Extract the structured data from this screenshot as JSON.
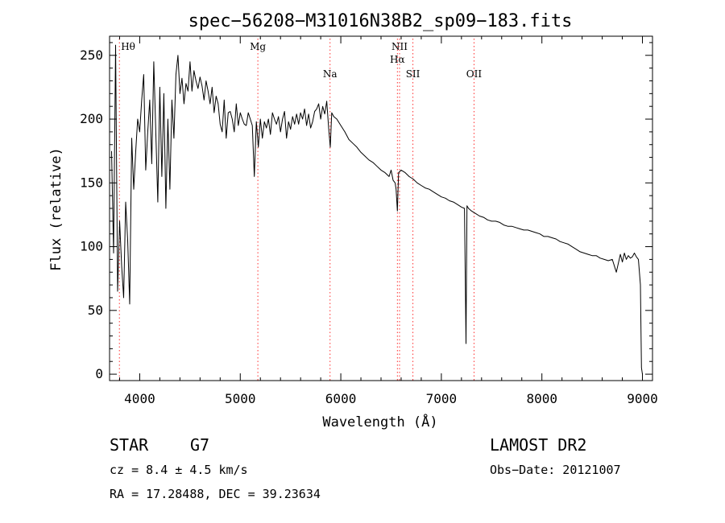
{
  "chart_data": {
    "type": "line",
    "title": "spec−56208−M31016N38B2_sp09−183.fits",
    "xlabel": "Wavelength (Å)",
    "ylabel": "Flux (relative)",
    "xlim": [
      3700,
      9100
    ],
    "ylim": [
      -5,
      265
    ],
    "xticks": [
      4000,
      5000,
      6000,
      7000,
      8000,
      9000
    ],
    "yticks": [
      0,
      50,
      100,
      150,
      200,
      250
    ],
    "grid": false,
    "series": [
      {
        "x": [
          3720,
          3740,
          3760,
          3780,
          3800,
          3820,
          3840,
          3860,
          3880,
          3900,
          3920,
          3940,
          3960,
          3980,
          4000,
          4020,
          4040,
          4060,
          4080,
          4100,
          4120,
          4140,
          4160,
          4180,
          4200,
          4220,
          4240,
          4260,
          4280,
          4300,
          4320,
          4340,
          4360,
          4380,
          4400,
          4420,
          4440,
          4460,
          4480,
          4500,
          4520,
          4540,
          4560,
          4580,
          4600,
          4620,
          4640,
          4660,
          4680,
          4700,
          4720,
          4740,
          4760,
          4780,
          4800,
          4820,
          4840,
          4860,
          4880,
          4900,
          4920,
          4940,
          4960,
          4980,
          5000,
          5020,
          5040,
          5060,
          5080,
          5100,
          5120,
          5140,
          5160,
          5180,
          5200,
          5220,
          5240,
          5260,
          5280,
          5300,
          5320,
          5340,
          5360,
          5380,
          5400,
          5420,
          5440,
          5460,
          5480,
          5500,
          5520,
          5540,
          5560,
          5580,
          5600,
          5620,
          5640,
          5660,
          5680,
          5700,
          5720,
          5740,
          5760,
          5780,
          5800,
          5820,
          5840,
          5860,
          5880,
          5895,
          5910,
          5930,
          5960,
          6000,
          6040,
          6080,
          6120,
          6160,
          6200,
          6240,
          6280,
          6320,
          6360,
          6400,
          6440,
          6480,
          6500,
          6520,
          6540,
          6550,
          6563,
          6575,
          6600,
          6640,
          6680,
          6720,
          6760,
          6800,
          6840,
          6880,
          6920,
          6960,
          7000,
          7040,
          7080,
          7120,
          7160,
          7200,
          7230,
          7245,
          7255,
          7270,
          7300,
          7340,
          7380,
          7420,
          7460,
          7500,
          7540,
          7580,
          7620,
          7660,
          7700,
          7740,
          7780,
          7820,
          7860,
          7900,
          7940,
          7980,
          8020,
          8060,
          8100,
          8140,
          8180,
          8220,
          8260,
          8300,
          8340,
          8380,
          8420,
          8460,
          8500,
          8540,
          8580,
          8620,
          8660,
          8700,
          8740,
          8780,
          8800,
          8820,
          8840,
          8860,
          8880,
          8900,
          8920,
          8940,
          8960,
          8980,
          8990,
          9000
        ],
        "y": [
          175,
          95,
          258,
          65,
          120,
          85,
          60,
          135,
          105,
          55,
          185,
          145,
          175,
          200,
          190,
          215,
          235,
          160,
          190,
          215,
          165,
          245,
          190,
          135,
          225,
          155,
          220,
          130,
          200,
          145,
          215,
          185,
          235,
          250,
          220,
          232,
          212,
          228,
          222,
          245,
          222,
          238,
          230,
          224,
          233,
          226,
          215,
          230,
          222,
          212,
          225,
          205,
          218,
          212,
          196,
          190,
          215,
          185,
          205,
          206,
          200,
          190,
          212,
          195,
          205,
          200,
          196,
          195,
          205,
          200,
          195,
          155,
          198,
          178,
          200,
          185,
          198,
          193,
          200,
          188,
          205,
          200,
          196,
          202,
          190,
          200,
          206,
          185,
          198,
          192,
          202,
          196,
          204,
          196,
          205,
          200,
          208,
          195,
          204,
          193,
          198,
          206,
          208,
          212,
          200,
          210,
          204,
          214,
          192,
          178,
          205,
          202,
          200,
          195,
          190,
          184,
          181,
          178,
          174,
          171,
          168,
          166,
          163,
          160,
          158,
          155,
          160,
          152,
          150,
          145,
          128,
          158,
          160,
          158,
          155,
          153,
          150,
          148,
          146,
          145,
          143,
          141,
          139,
          138,
          136,
          135,
          133,
          131,
          130,
          24,
          132,
          130,
          128,
          126,
          124,
          123,
          121,
          120,
          120,
          119,
          117,
          116,
          116,
          115,
          114,
          113,
          113,
          112,
          111,
          110,
          108,
          108,
          107,
          106,
          104,
          103,
          102,
          100,
          98,
          96,
          95,
          94,
          93,
          93,
          91,
          90,
          89,
          90,
          80,
          94,
          88,
          95,
          90,
          93,
          91,
          92,
          95,
          92,
          90,
          70,
          5,
          0
        ]
      }
    ],
    "spectral_lines": [
      {
        "label": "Hθ",
        "wavelength": 3798,
        "row": 1
      },
      {
        "label": "Mg",
        "wavelength": 5175,
        "row": 1
      },
      {
        "label": "Na",
        "wavelength": 5893,
        "row": 3
      },
      {
        "label": "NII",
        "wavelength": 6584,
        "row": 1
      },
      {
        "label": "Hα",
        "wavelength": 6563,
        "row": 2
      },
      {
        "label": "SII",
        "wavelength": 6717,
        "row": 3
      },
      {
        "label": "OII",
        "wavelength": 7325,
        "row": 3
      }
    ]
  },
  "info": {
    "object_type": "STAR",
    "subclass": "G7",
    "survey": "LAMOST DR2",
    "cz": "cz = 8.4 ± 4.5 km/s",
    "obs_date": "Obs−Date: 20121007",
    "coords": "RA =  17.28488, DEC =  39.23634"
  },
  "colors": {
    "spectrum": "#000000",
    "line_markers": "#ff3030",
    "text": "#000000",
    "background": "#ffffff"
  }
}
